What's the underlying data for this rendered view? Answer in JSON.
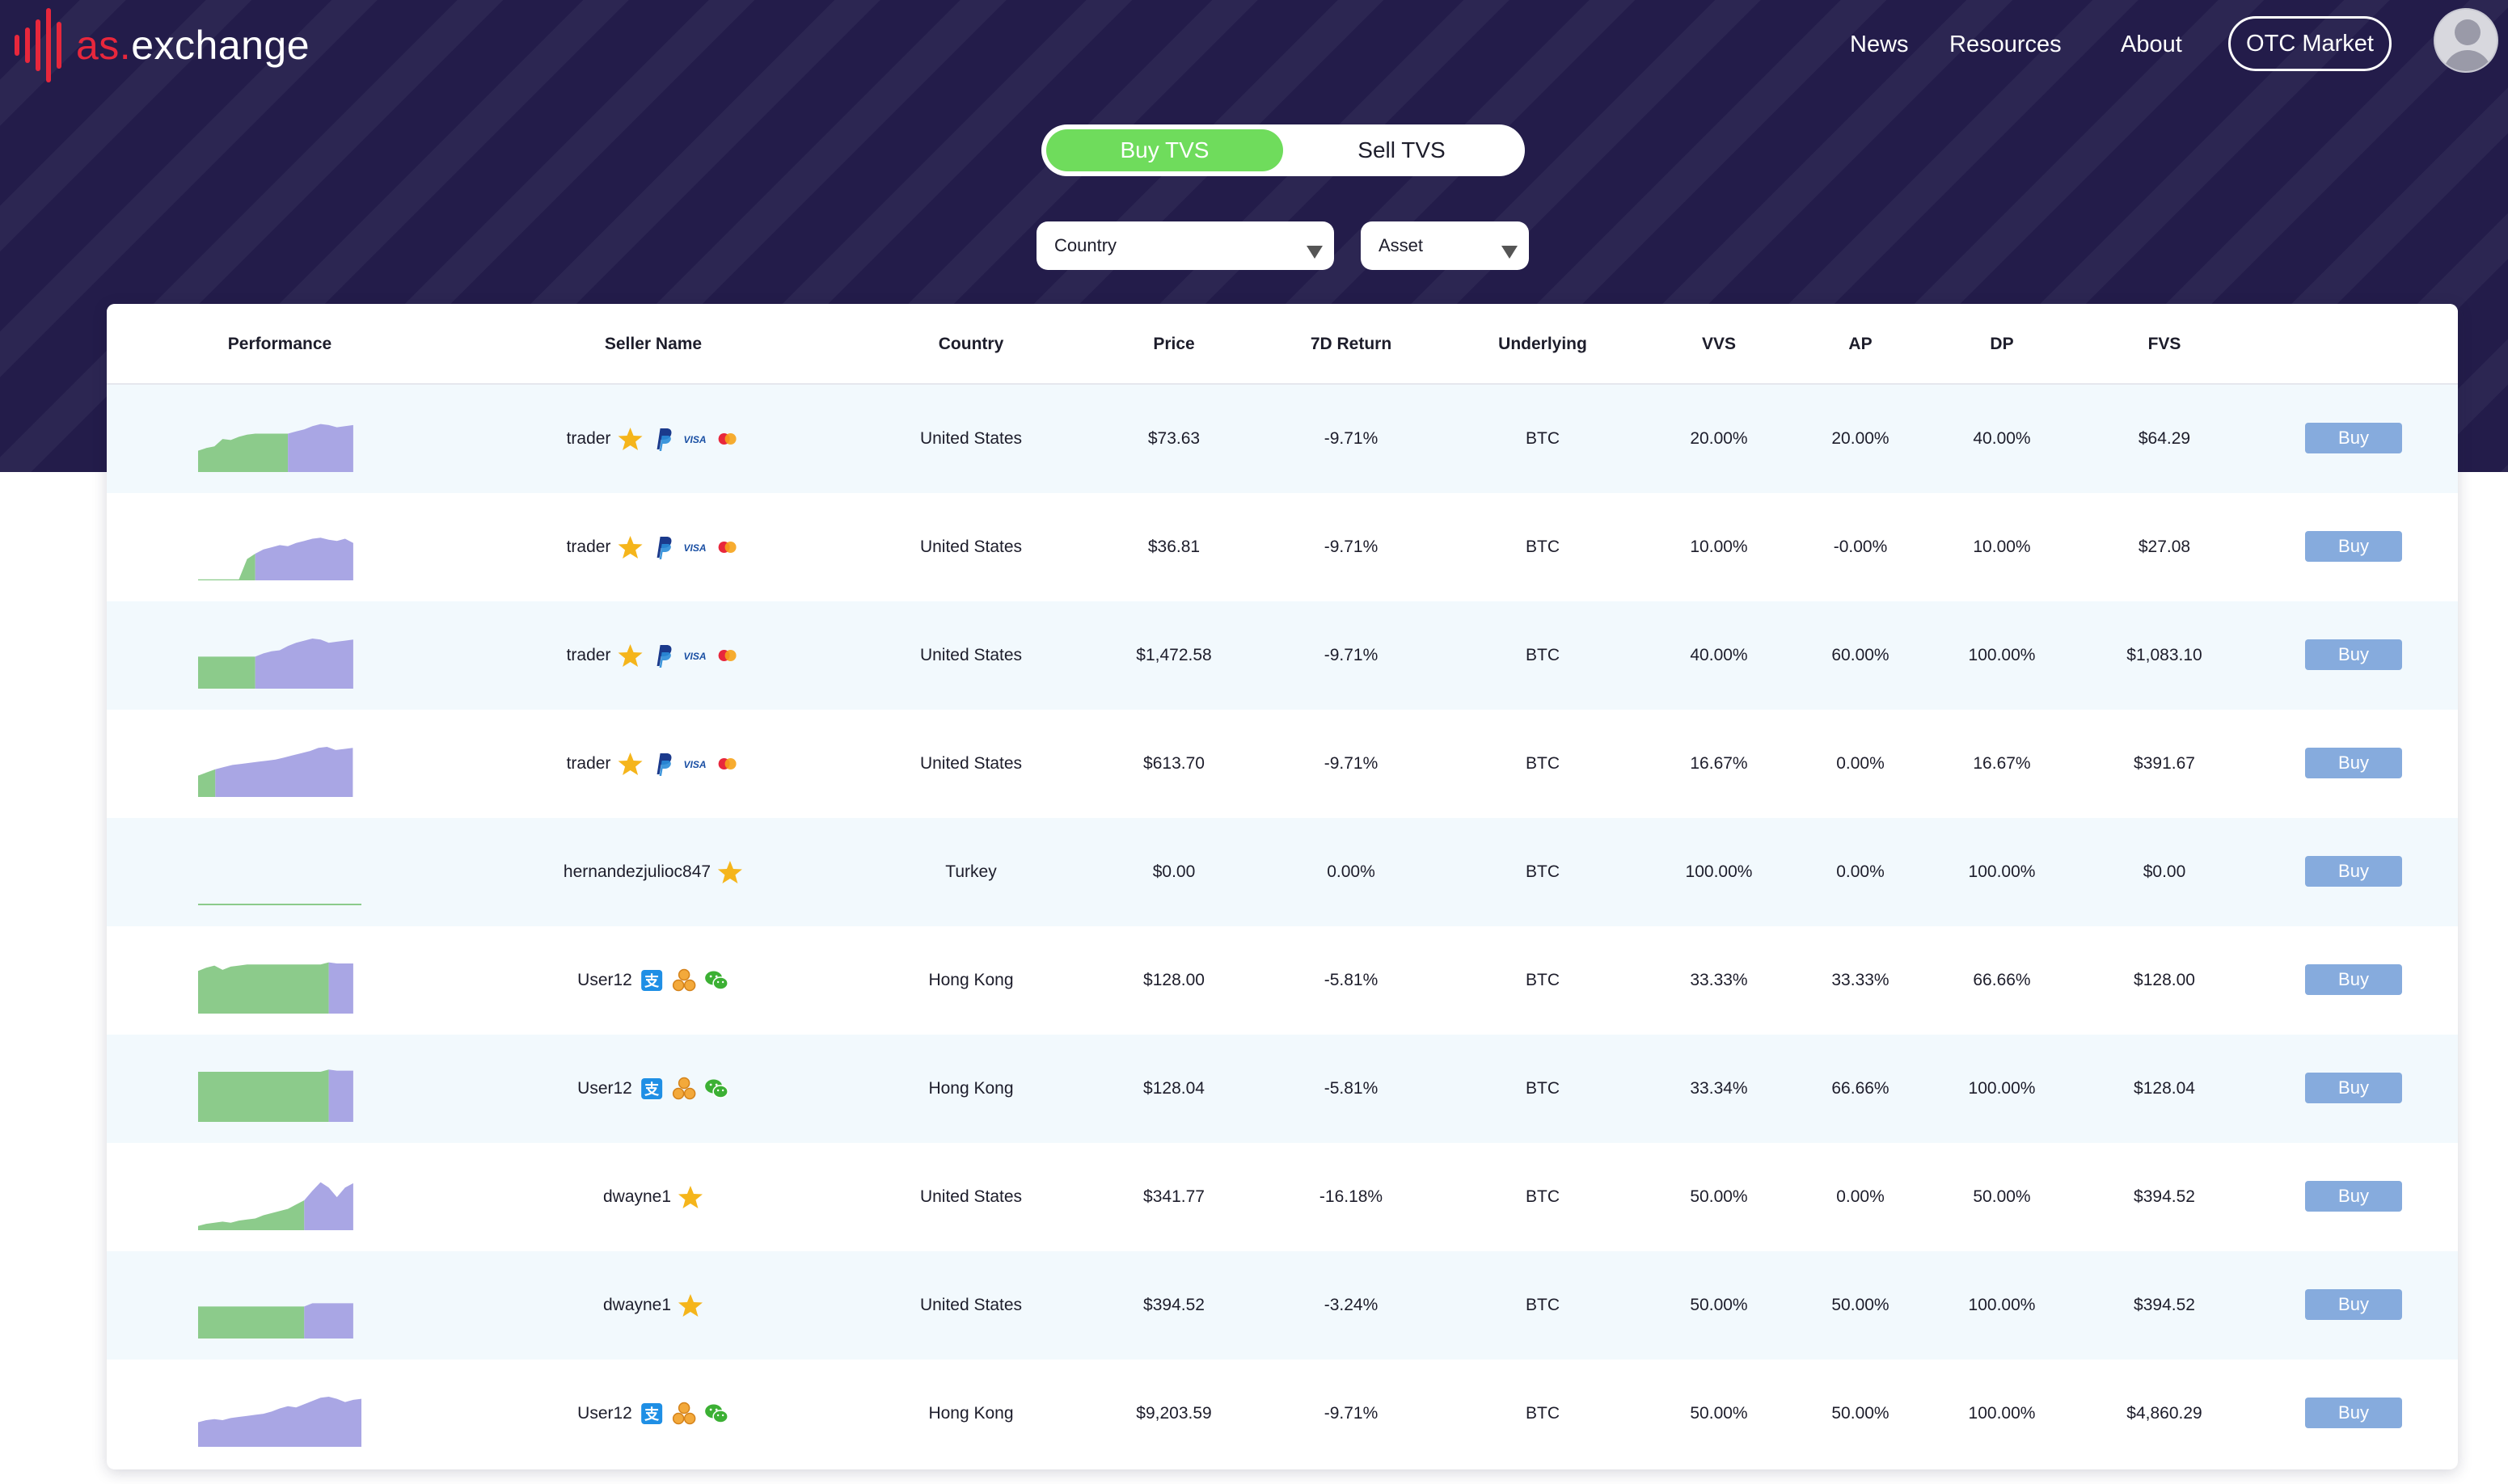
{
  "brand": {
    "prefix": "as.",
    "name": "exchange",
    "color": "#e8273c"
  },
  "nav": {
    "news": "News",
    "resources": "Resources",
    "about": "About",
    "otc_market": "OTC Market"
  },
  "mode_toggle": {
    "buy_label": "Buy TVS",
    "sell_label": "Sell TVS",
    "active": "buy"
  },
  "filters": {
    "country": "Country",
    "asset": "Asset"
  },
  "colors": {
    "buy_green": "#6fdc5c",
    "spark_green": "#8ccb8b",
    "spark_purple": "#a9a6e4",
    "buy_button": "#86abdd"
  },
  "table": {
    "headers": {
      "performance": "Performance",
      "seller_name": "Seller Name",
      "country": "Country",
      "price": "Price",
      "return_7d": "7D Return",
      "underlying": "Underlying",
      "vvs": "VVS",
      "ap": "AP",
      "dp": "DP",
      "fvs": "FVS"
    },
    "buy_label": "Buy",
    "rows": [
      {
        "seller": "trader",
        "badges": [
          "star-icon",
          "paypal-icon",
          "visa-icon",
          "mastercard-icon"
        ],
        "country": "United States",
        "price": "$73.63",
        "return_7d": "-9.71%",
        "underlying": "BTC",
        "vvs": "20.00%",
        "ap": "20.00%",
        "dp": "40.00%",
        "fvs": "$64.29",
        "performance": {
          "green": [
            0.4,
            0.45,
            0.48,
            0.62,
            0.6,
            0.66,
            0.7,
            0.72,
            0.72,
            0.72,
            0.72,
            0.72
          ],
          "purple": [
            0.72,
            0.76,
            0.8,
            0.86,
            0.9,
            0.88,
            0.84,
            0.86,
            0.88
          ]
        }
      },
      {
        "seller": "trader",
        "badges": [
          "star-icon",
          "paypal-icon",
          "visa-icon",
          "mastercard-icon"
        ],
        "country": "United States",
        "price": "$36.81",
        "return_7d": "-9.71%",
        "underlying": "BTC",
        "vvs": "10.00%",
        "ap": "-0.00%",
        "dp": "10.00%",
        "fvs": "$27.08",
        "performance": {
          "green": [
            0.02,
            0.02,
            0.02,
            0.02,
            0.02,
            0.02,
            0.4,
            0.5
          ],
          "purple": [
            0.5,
            0.58,
            0.62,
            0.66,
            0.64,
            0.7,
            0.74,
            0.78,
            0.8,
            0.76,
            0.74,
            0.78,
            0.7
          ]
        }
      },
      {
        "seller": "trader",
        "badges": [
          "star-icon",
          "paypal-icon",
          "visa-icon",
          "mastercard-icon"
        ],
        "country": "United States",
        "price": "$1,472.58",
        "return_7d": "-9.71%",
        "underlying": "BTC",
        "vvs": "40.00%",
        "ap": "60.00%",
        "dp": "100.00%",
        "fvs": "$1,083.10",
        "performance": {
          "green": [
            0.6,
            0.6,
            0.6,
            0.6,
            0.6,
            0.6,
            0.6,
            0.6
          ],
          "purple": [
            0.6,
            0.66,
            0.7,
            0.72,
            0.8,
            0.86,
            0.9,
            0.94,
            0.92,
            0.86,
            0.88,
            0.9,
            0.92
          ]
        }
      },
      {
        "seller": "trader",
        "badges": [
          "star-icon",
          "paypal-icon",
          "visa-icon",
          "mastercard-icon"
        ],
        "country": "United States",
        "price": "$613.70",
        "return_7d": "-9.71%",
        "underlying": "BTC",
        "vvs": "16.67%",
        "ap": "0.00%",
        "dp": "16.67%",
        "fvs": "$391.67",
        "performance": {
          "green": [
            0.4,
            0.46,
            0.52
          ],
          "purple": [
            0.52,
            0.56,
            0.6,
            0.62,
            0.64,
            0.66,
            0.68,
            0.7,
            0.74,
            0.78,
            0.82,
            0.86,
            0.92,
            0.94,
            0.88,
            0.9,
            0.92
          ]
        }
      },
      {
        "seller": "hernandezjulioc847",
        "badges": [
          "star-icon"
        ],
        "country": "Turkey",
        "price": "$0.00",
        "return_7d": "0.00%",
        "underlying": "BTC",
        "vvs": "100.00%",
        "ap": "0.00%",
        "dp": "100.00%",
        "fvs": "$0.00",
        "performance": {
          "green": [
            0.02,
            0.02,
            0.02,
            0.02,
            0.02,
            0.02,
            0.02,
            0.02,
            0.02,
            0.02,
            0.02,
            0.02,
            0.02,
            0.02,
            0.02,
            0.02,
            0.02,
            0.02,
            0.02,
            0.02
          ],
          "purple": []
        }
      },
      {
        "seller": "User12",
        "badges": [
          "alipay-icon",
          "coins-icon",
          "wechat-icon"
        ],
        "country": "Hong Kong",
        "price": "$128.00",
        "return_7d": "-5.81%",
        "underlying": "BTC",
        "vvs": "33.33%",
        "ap": "33.33%",
        "dp": "66.66%",
        "fvs": "$128.00",
        "performance": {
          "green": [
            0.8,
            0.86,
            0.9,
            0.82,
            0.88,
            0.9,
            0.92,
            0.92,
            0.92,
            0.92,
            0.92,
            0.92,
            0.92,
            0.92,
            0.92,
            0.92,
            0.96
          ],
          "purple": [
            0.96,
            0.94,
            0.94,
            0.94
          ]
        }
      },
      {
        "seller": "User12",
        "badges": [
          "alipay-icon",
          "coins-icon",
          "wechat-icon"
        ],
        "country": "Hong Kong",
        "price": "$128.04",
        "return_7d": "-5.81%",
        "underlying": "BTC",
        "vvs": "33.34%",
        "ap": "66.66%",
        "dp": "100.00%",
        "fvs": "$128.04",
        "performance": {
          "green": [
            0.94,
            0.94,
            0.94,
            0.94,
            0.94,
            0.94,
            0.94,
            0.94,
            0.94,
            0.94,
            0.94,
            0.94,
            0.94,
            0.94,
            0.94,
            0.94,
            0.98
          ],
          "purple": [
            0.98,
            0.96,
            0.96,
            0.96
          ]
        }
      },
      {
        "seller": "dwayne1",
        "badges": [
          "star-icon"
        ],
        "country": "United States",
        "price": "$341.77",
        "return_7d": "-16.18%",
        "underlying": "BTC",
        "vvs": "50.00%",
        "ap": "0.00%",
        "dp": "50.00%",
        "fvs": "$394.52",
        "performance": {
          "green": [
            0.08,
            0.12,
            0.14,
            0.16,
            0.14,
            0.18,
            0.2,
            0.22,
            0.28,
            0.32,
            0.36,
            0.4,
            0.48,
            0.56
          ],
          "purple": [
            0.56,
            0.74,
            0.9,
            0.8,
            0.62,
            0.8,
            0.88
          ]
        }
      },
      {
        "seller": "dwayne1",
        "badges": [
          "star-icon"
        ],
        "country": "United States",
        "price": "$394.52",
        "return_7d": "-3.24%",
        "underlying": "BTC",
        "vvs": "50.00%",
        "ap": "50.00%",
        "dp": "100.00%",
        "fvs": "$394.52",
        "performance": {
          "green": [
            0.6,
            0.6,
            0.6,
            0.6,
            0.6,
            0.6,
            0.6,
            0.6,
            0.6,
            0.6,
            0.6,
            0.6,
            0.6,
            0.6
          ],
          "purple": [
            0.6,
            0.66,
            0.66,
            0.66,
            0.66,
            0.66,
            0.66
          ]
        }
      },
      {
        "seller": "User12",
        "badges": [
          "alipay-icon",
          "coins-icon",
          "wechat-icon"
        ],
        "country": "Hong Kong",
        "price": "$9,203.59",
        "return_7d": "-9.71%",
        "underlying": "BTC",
        "vvs": "50.00%",
        "ap": "50.00%",
        "dp": "100.00%",
        "fvs": "$4,860.29",
        "performance": {
          "green": [],
          "purple": [
            0.46,
            0.5,
            0.52,
            0.5,
            0.54,
            0.56,
            0.58,
            0.6,
            0.62,
            0.66,
            0.72,
            0.76,
            0.74,
            0.8,
            0.86,
            0.92,
            0.94,
            0.9,
            0.84,
            0.88,
            0.9
          ]
        }
      }
    ]
  }
}
